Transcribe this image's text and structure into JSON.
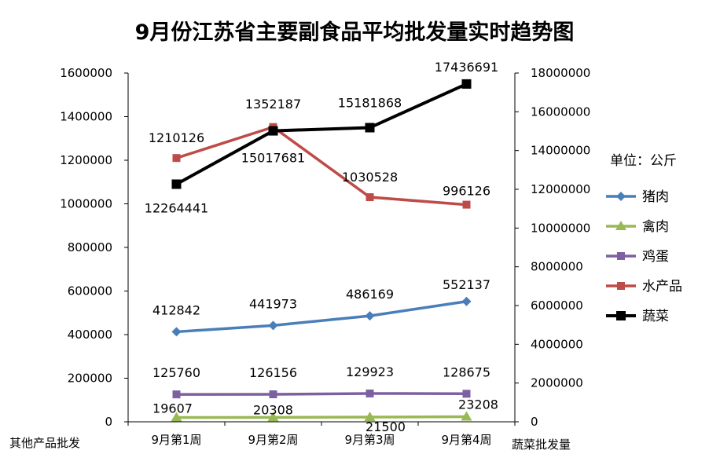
{
  "chart_data": {
    "type": "line",
    "title": "9月份江苏省主要副食品平均批发量实时趋势图",
    "unit_note": "单位：公斤",
    "categories": [
      "9月第1周",
      "9月第2周",
      "9月第3周",
      "9月第4周"
    ],
    "y_left": {
      "label": "其他产品批发",
      "ylim": [
        0,
        1600000
      ],
      "ticks": [
        0,
        200000,
        400000,
        600000,
        800000,
        1000000,
        1200000,
        1400000,
        1600000
      ]
    },
    "y_right": {
      "label": "蔬菜批发量",
      "ylim": [
        0,
        18000000
      ],
      "ticks": [
        0,
        2000000,
        4000000,
        6000000,
        8000000,
        10000000,
        12000000,
        14000000,
        16000000,
        18000000
      ]
    },
    "grid": false,
    "legend_position": "right",
    "series": [
      {
        "name": "猪肉",
        "axis": "left",
        "color": "#4a7ebb",
        "marker": "diamond",
        "values": [
          412842,
          441973,
          486169,
          552137
        ]
      },
      {
        "name": "禽肉",
        "axis": "left",
        "color": "#98b954",
        "marker": "triangle",
        "values": [
          19607,
          20308,
          21500,
          23208
        ]
      },
      {
        "name": "鸡蛋",
        "axis": "left",
        "color": "#7d60a0",
        "marker": "square",
        "values": [
          125760,
          126156,
          129923,
          128675
        ]
      },
      {
        "name": "水产品",
        "axis": "left",
        "color": "#be4b48",
        "marker": "square",
        "values": [
          1210126,
          1352187,
          1030528,
          996126
        ]
      },
      {
        "name": "蔬菜",
        "axis": "right",
        "color": "#000000",
        "marker": "square",
        "values": [
          12264441,
          15017681,
          15181868,
          17436691
        ]
      }
    ]
  }
}
